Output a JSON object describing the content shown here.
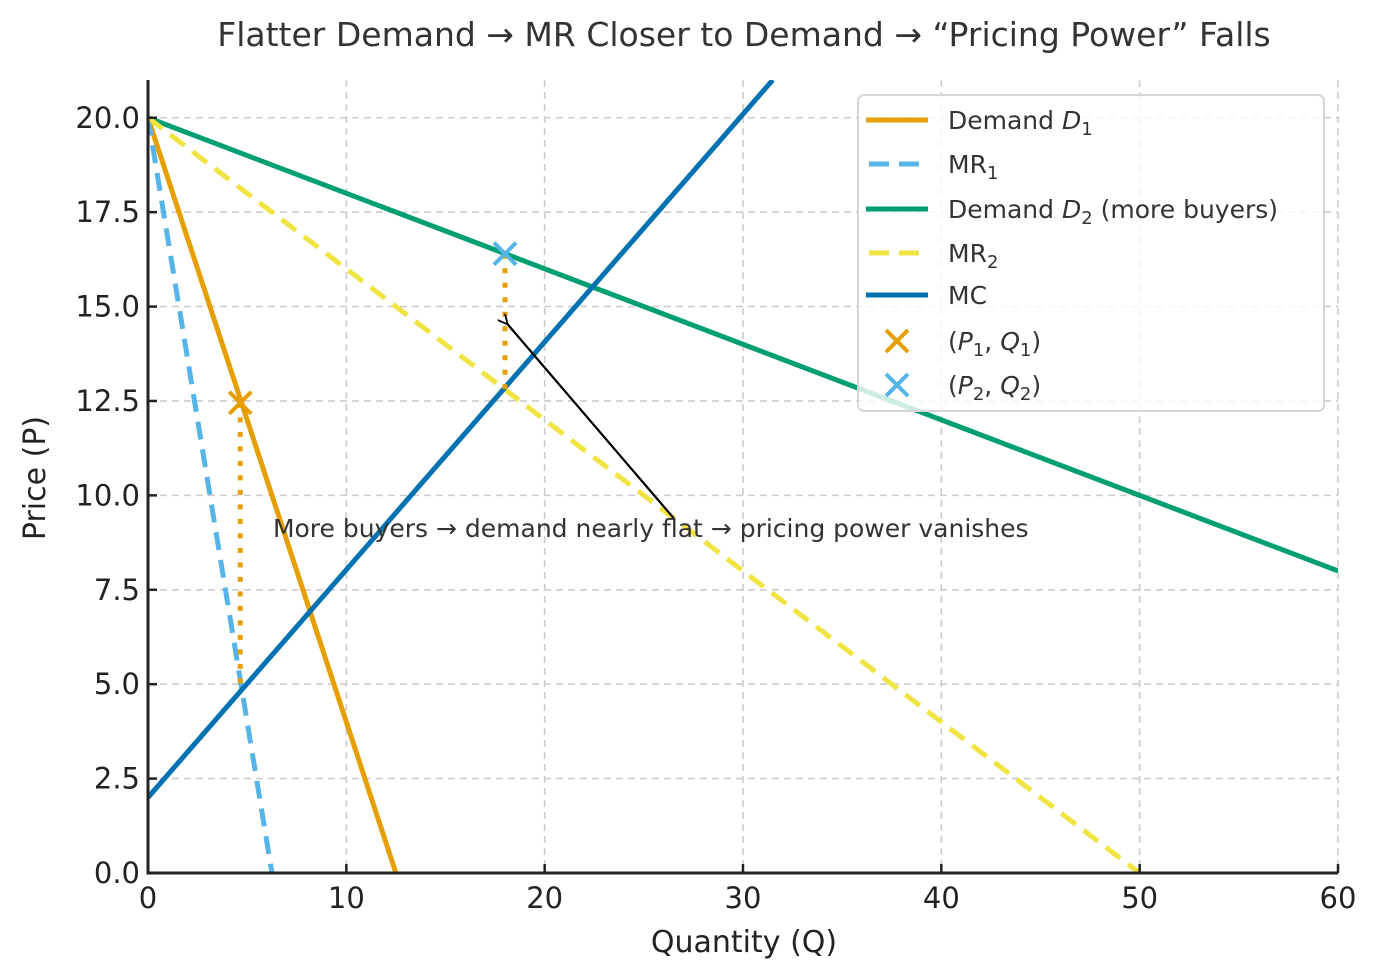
{
  "chart_data": {
    "type": "line",
    "title": "Flatter Demand → MR Closer to Demand → “Pricing Power” Falls",
    "xlabel": "Quantity (Q)",
    "ylabel": "Price (P)",
    "xlim": [
      0,
      60
    ],
    "ylim": [
      0,
      21
    ],
    "grid": true,
    "x_ticks": [
      0,
      10,
      20,
      30,
      40,
      50,
      60
    ],
    "x_tick_labels": [
      "0",
      "10",
      "20",
      "30",
      "40",
      "50",
      "60"
    ],
    "y_ticks": [
      0,
      2.5,
      5,
      7.5,
      10,
      12.5,
      15,
      17.5,
      20
    ],
    "y_tick_labels": [
      "0.0",
      "2.5",
      "5.0",
      "7.5",
      "10.0",
      "12.5",
      "15.0",
      "17.5",
      "20.0"
    ],
    "legend_position": "top-right",
    "series": [
      {
        "name": "Demand D1",
        "label_main": "Demand ",
        "label_var": "D",
        "label_sub": "1",
        "label_tail": "",
        "style": "solid",
        "color": "#E69F00",
        "x": [
          0,
          12.5
        ],
        "y": [
          20,
          0
        ]
      },
      {
        "name": "MR1",
        "label_main": "MR",
        "label_var": "",
        "label_sub": "1",
        "label_tail": "",
        "style": "dashed",
        "color": "#56B4E9",
        "x": [
          0,
          6.25
        ],
        "y": [
          20,
          0
        ]
      },
      {
        "name": "Demand D2 (more buyers)",
        "label_main": "Demand ",
        "label_var": "D",
        "label_sub": "2",
        "label_tail": " (more buyers)",
        "style": "solid",
        "color": "#009E73",
        "x": [
          0,
          60
        ],
        "y": [
          20,
          8
        ]
      },
      {
        "name": "MR2",
        "label_main": "MR",
        "label_var": "",
        "label_sub": "2",
        "label_tail": "",
        "style": "dashed",
        "color": "#F0E442",
        "x": [
          0,
          50
        ],
        "y": [
          20,
          0
        ]
      },
      {
        "name": "MC",
        "label_main": "MC",
        "label_var": "",
        "label_sub": "",
        "label_tail": "",
        "style": "solid",
        "color": "#0072B2",
        "x": [
          0,
          31.5
        ],
        "y": [
          2,
          21
        ]
      }
    ],
    "points": [
      {
        "name": "(P1, Q1)",
        "p_sub": "1",
        "q_sub": "1",
        "color": "#E69F00",
        "x": 4.65,
        "y": 12.45
      },
      {
        "name": "(P2, Q2)",
        "p_sub": "2",
        "q_sub": "2",
        "color": "#56B4E9",
        "x": 18.0,
        "y": 16.4
      }
    ],
    "markup_lines": [
      {
        "name": "gap-1",
        "color": "#E69F00",
        "x": 4.65,
        "y_from": 12.45,
        "y_to": 4.85
      },
      {
        "name": "gap-2",
        "color": "#E69F00",
        "x": 18.0,
        "y_from": 16.4,
        "y_to": 12.8
      }
    ],
    "annotation": {
      "text": "More buyers → demand nearly flat → pricing power vanishes",
      "text_x": 6.3,
      "text_y": 8.9,
      "arrow_tail_x": 26.5,
      "arrow_tail_y": 9.4,
      "arrow_head_x": 18.1,
      "arrow_head_y": 14.55
    }
  }
}
